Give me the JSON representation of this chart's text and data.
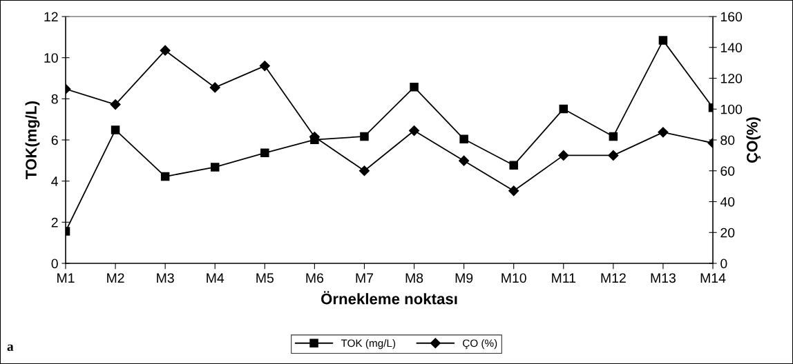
{
  "chart_data": {
    "type": "line",
    "xlabel": "Örnekleme noktası",
    "ylabel": "TOK(mg/L)",
    "y2label": "ÇO(%)",
    "categories": [
      "M1",
      "M2",
      "M3",
      "M4",
      "M5",
      "M6",
      "M7",
      "M8",
      "M9",
      "M10",
      "M11",
      "M12",
      "M13",
      "M14"
    ],
    "series": [
      {
        "name": "TOK (mg/L)",
        "color": "#000000",
        "marker": "square",
        "values": [
          1.56,
          6.49,
          4.22,
          4.68,
          5.37,
          6.01,
          6.17,
          8.57,
          6.04,
          4.77,
          7.51,
          6.17,
          10.84,
          7.57
        ]
      },
      {
        "name": "ÇO (%)",
        "color": "#000000",
        "marker": "diamond",
        "axis": "y2",
        "values": [
          113,
          103,
          138,
          114,
          128,
          82,
          60,
          86,
          66.5,
          47,
          70,
          70,
          85,
          78
        ]
      }
    ],
    "ylim": [
      0,
      12
    ],
    "yticks": [
      0,
      2,
      4,
      6,
      8,
      10,
      12
    ],
    "y2lim": [
      0,
      160
    ],
    "y2ticks": [
      0,
      20,
      40,
      60,
      80,
      100,
      120,
      140,
      160
    ],
    "grid": false,
    "legend": "bottom",
    "line_style": "solid",
    "annotations": [
      "a"
    ]
  }
}
